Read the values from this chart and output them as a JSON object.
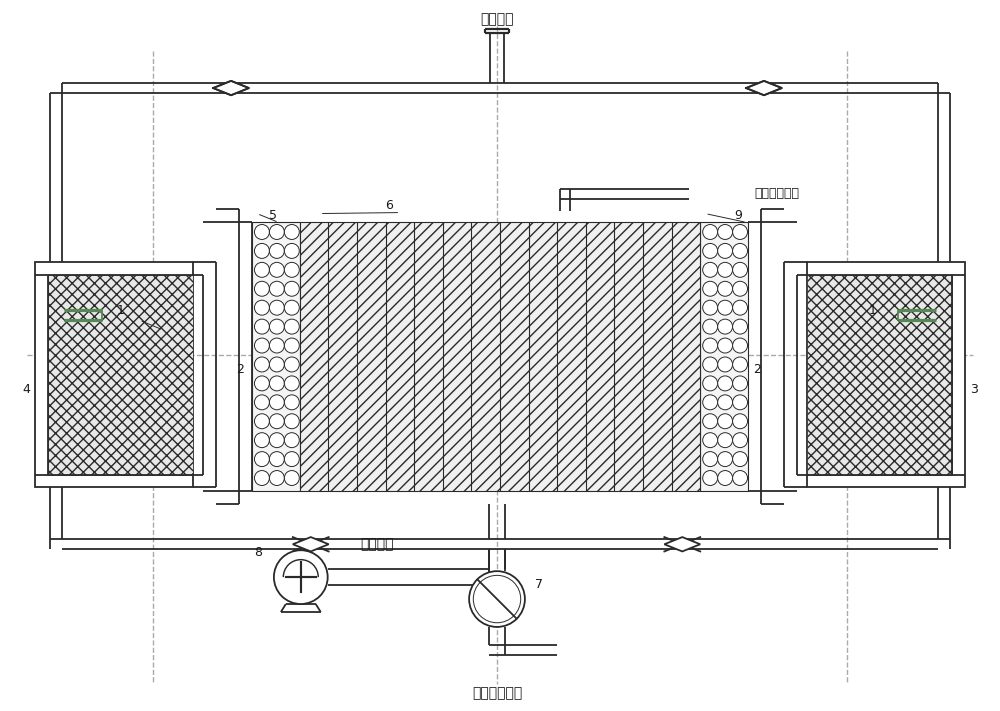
{
  "bg_color": "#ffffff",
  "line_color": "#2a2a2a",
  "dash_color": "#aaaaaa",
  "label_color": "#1a1a1a",
  "figsize": [
    10.0,
    7.11
  ],
  "dpi": 100,
  "labels": {
    "reaction_gas_in": "反应气体",
    "reaction_gas_out": "反应气体出口",
    "combustion_gas_out": "燃烧气体出口",
    "fan_air": "助燃空气"
  }
}
